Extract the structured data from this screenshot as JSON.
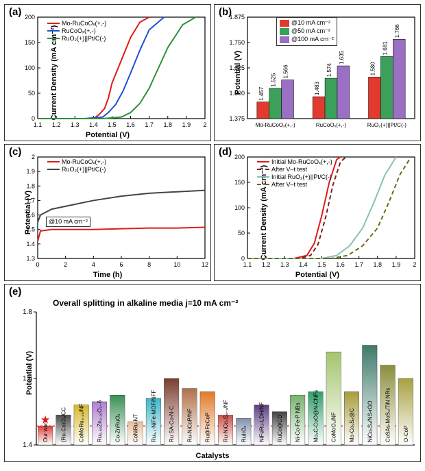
{
  "panel_a": {
    "label": "(a)",
    "type": "line",
    "xlabel": "Potential (V)",
    "ylabel": "Current Density (mA cm⁻²)",
    "xlim": [
      1.1,
      2.0
    ],
    "ylim": [
      0,
      200
    ],
    "xticks": [
      1.1,
      1.2,
      1.3,
      1.4,
      1.5,
      1.6,
      1.7,
      1.8,
      1.9,
      2.0
    ],
    "yticks": [
      0,
      50,
      100,
      150,
      200
    ],
    "label_fontsize": 11,
    "series": [
      {
        "name": "Mo-RuCoOₓ(+,-)",
        "color": "#e21a1a",
        "dash": "none",
        "xs": [
          1.1,
          1.3,
          1.4,
          1.43,
          1.46,
          1.48,
          1.5,
          1.55,
          1.6,
          1.65,
          1.7
        ],
        "ys": [
          0,
          0,
          0,
          8,
          20,
          40,
          70,
          115,
          160,
          190,
          200
        ]
      },
      {
        "name": "RuCoOₓ(+,-)",
        "color": "#1f4fd6",
        "dash": "none",
        "xs": [
          1.1,
          1.35,
          1.45,
          1.48,
          1.52,
          1.56,
          1.6,
          1.65,
          1.7,
          1.78
        ],
        "ys": [
          0,
          0,
          3,
          12,
          28,
          55,
          90,
          135,
          175,
          200
        ]
      },
      {
        "name": "RuO₂(+)||Pt/C(-)",
        "color": "#2f8f3a",
        "dash": "none",
        "xs": [
          1.1,
          1.45,
          1.55,
          1.6,
          1.65,
          1.7,
          1.75,
          1.8,
          1.88,
          1.95
        ],
        "ys": [
          0,
          0,
          3,
          12,
          30,
          60,
          100,
          140,
          185,
          200
        ]
      }
    ]
  },
  "panel_b": {
    "label": "(b)",
    "type": "bar",
    "xlabel": "",
    "ylabel": "Potential (V)",
    "ylim": [
      1.375,
      1.875
    ],
    "yticks": [
      1.375,
      1.5,
      1.625,
      1.75,
      1.875
    ],
    "categories": [
      "Mo-RuCoOₓ(+,-)",
      "RuCoOₓ(+,-)",
      "RuO₂(+)||Pt/C(-)"
    ],
    "groups": [
      {
        "name": "@10 mA cm⁻²",
        "color": "#e23a2e",
        "values": [
          1.457,
          1.483,
          1.58
        ]
      },
      {
        "name": "@50 mA cm⁻²",
        "color": "#3aa05a",
        "values": [
          1.525,
          1.574,
          1.681
        ]
      },
      {
        "name": "@100 mA cm⁻²",
        "color": "#9a6fc4",
        "values": [
          1.566,
          1.635,
          1.766
        ]
      }
    ],
    "bar_width": 0.22
  },
  "panel_c": {
    "label": "(c)",
    "type": "line",
    "xlabel": "Time (h)",
    "ylabel": "Potential (V)",
    "xlim": [
      0,
      12
    ],
    "ylim": [
      1.3,
      2.0
    ],
    "xticks": [
      0,
      2,
      4,
      6,
      8,
      10,
      12
    ],
    "yticks": [
      1.3,
      1.4,
      1.5,
      1.6,
      1.7,
      1.8,
      1.9,
      2.0
    ],
    "annotation": "@10 mA cm⁻²",
    "series": [
      {
        "name": "Mo-RuCoOₓ(+,-)",
        "color": "#e21a1a",
        "xs": [
          0,
          0.2,
          1,
          2,
          4,
          6,
          8,
          10,
          12
        ],
        "ys": [
          1.42,
          1.49,
          1.5,
          1.5,
          1.5,
          1.505,
          1.51,
          1.51,
          1.515
        ]
      },
      {
        "name": "RuO₂(+)||Pt/C(-)",
        "color": "#444444",
        "xs": [
          0,
          0.2,
          1,
          2,
          4,
          6,
          8,
          10,
          12
        ],
        "ys": [
          1.55,
          1.6,
          1.64,
          1.66,
          1.7,
          1.73,
          1.75,
          1.76,
          1.77
        ]
      }
    ]
  },
  "panel_d": {
    "label": "(d)",
    "type": "line",
    "xlabel": "Potential (V)",
    "ylabel": "Current Density (mA cm⁻²)",
    "xlim": [
      1.1,
      2.0
    ],
    "ylim": [
      0,
      200
    ],
    "xticks": [
      1.1,
      1.2,
      1.3,
      1.4,
      1.5,
      1.6,
      1.7,
      1.8,
      1.9,
      2.0
    ],
    "yticks": [
      0,
      50,
      100,
      150,
      200
    ],
    "series": [
      {
        "name": "Initial Mo-RuCoOₓ(+,-)",
        "color": "#e21a1a",
        "dash": "none",
        "xs": [
          1.1,
          1.35,
          1.42,
          1.46,
          1.5,
          1.54,
          1.58,
          1.6
        ],
        "ys": [
          0,
          0,
          6,
          30,
          85,
          150,
          195,
          200
        ]
      },
      {
        "name": "After V–t test",
        "color": "#7a1f1f",
        "dash": "6,4",
        "xs": [
          1.1,
          1.38,
          1.44,
          1.48,
          1.52,
          1.56,
          1.6,
          1.63
        ],
        "ys": [
          0,
          0,
          6,
          28,
          80,
          145,
          190,
          200
        ]
      },
      {
        "name": "Initial RuO₂(+)||Pt/C(-)",
        "color": "#86c2b1",
        "dash": "none",
        "xs": [
          1.1,
          1.5,
          1.58,
          1.65,
          1.72,
          1.78,
          1.84,
          1.9
        ],
        "ys": [
          0,
          0,
          6,
          25,
          60,
          110,
          165,
          200
        ]
      },
      {
        "name": "After V–t test",
        "color": "#6a6a1a",
        "dash": "6,4",
        "xs": [
          1.1,
          1.55,
          1.64,
          1.72,
          1.8,
          1.86,
          1.92,
          1.98
        ],
        "ys": [
          0,
          0,
          6,
          25,
          60,
          110,
          165,
          200
        ]
      }
    ]
  },
  "panel_e": {
    "label": "(e)",
    "type": "bar",
    "title": "Overall splitting in alkaline media   j=10 mA cm⁻²",
    "xlabel": "Catalysts",
    "ylabel": "Potential (V)",
    "ylim": [
      1.4,
      1.8
    ],
    "yticks": [
      1.4,
      1.6,
      1.8
    ],
    "ref_line": {
      "y": 1.457,
      "color": "#e21a1a",
      "dash": "3,3"
    },
    "bars": [
      {
        "label": "Our work",
        "value": 1.457,
        "color": "#e0403c",
        "star": true,
        "grad": true
      },
      {
        "label": "(Ru-Co)Oₓ/CC",
        "value": 1.49,
        "color": "#4a4a4a",
        "grad": true
      },
      {
        "label": "CoMoRu₀.₂₀/NF",
        "value": 1.52,
        "color": "#d6b82a",
        "grad": true
      },
      {
        "label": "Ru₀.₈₅Zn₀.₁₅O₂₋δ",
        "value": 1.53,
        "color": "#b07fd1",
        "grad": true
      },
      {
        "label": "Co-ZnRuOₓ",
        "value": 1.55,
        "color": "#3a8f56",
        "grad": true
      },
      {
        "label": "CoNiRu-NT",
        "value": 1.47,
        "color": "#e7bd96",
        "grad": true
      },
      {
        "label": "Ru₀.₁-NiFe-MOF/NFF",
        "value": 1.54,
        "color": "#3fb7c9",
        "grad": true
      },
      {
        "label": "Ru SA-Co-N-C",
        "value": 1.6,
        "color": "#7a3e2e",
        "grad": true
      },
      {
        "label": "Ru-NiCoP/NF",
        "value": 1.57,
        "color": "#b0704a",
        "grad": true
      },
      {
        "label": "Ru@FeCoP",
        "value": 1.56,
        "color": "#e07a2a",
        "grad": true
      },
      {
        "label": "Ru-NiCo₂S₄₋ₓ/NF",
        "value": 1.49,
        "color": "#ce524a",
        "grad": true
      },
      {
        "label": "RuIrOₓ",
        "value": 1.48,
        "color": "#8090b0",
        "grad": true
      },
      {
        "label": "NiFeRu-LDH/NF",
        "value": 1.52,
        "color": "#5b3e83",
        "grad": true
      },
      {
        "label": "RuCo@CD",
        "value": 1.5,
        "color": "#434343",
        "grad": true
      },
      {
        "label": "Ni-Co-Fe-P NBs",
        "value": 1.55,
        "color": "#78b270",
        "grad": true
      },
      {
        "label": "Mo₂C-CoO@N-CNFs",
        "value": 1.56,
        "color": "#2fa06a",
        "grad": true
      },
      {
        "label": "CoMoO₄/NF",
        "value": 1.68,
        "color": "#a4c46e",
        "grad": true
      },
      {
        "label": "Mo-Co₉S₈@C",
        "value": 1.56,
        "color": "#a89a3c",
        "grad": true
      },
      {
        "label": "NiCo₂S₄/NS-rGO",
        "value": 1.7,
        "color": "#3f7a6a",
        "grad": true
      },
      {
        "label": "CoSAs-MoS₂/TiN NRs",
        "value": 1.64,
        "color": "#8b8e3a",
        "grad": true
      },
      {
        "label": "O-CoP",
        "value": 1.6,
        "color": "#a8a042",
        "grad": true
      }
    ]
  },
  "colors": {
    "axis": "#000000",
    "grid": "#d0d0d0"
  }
}
